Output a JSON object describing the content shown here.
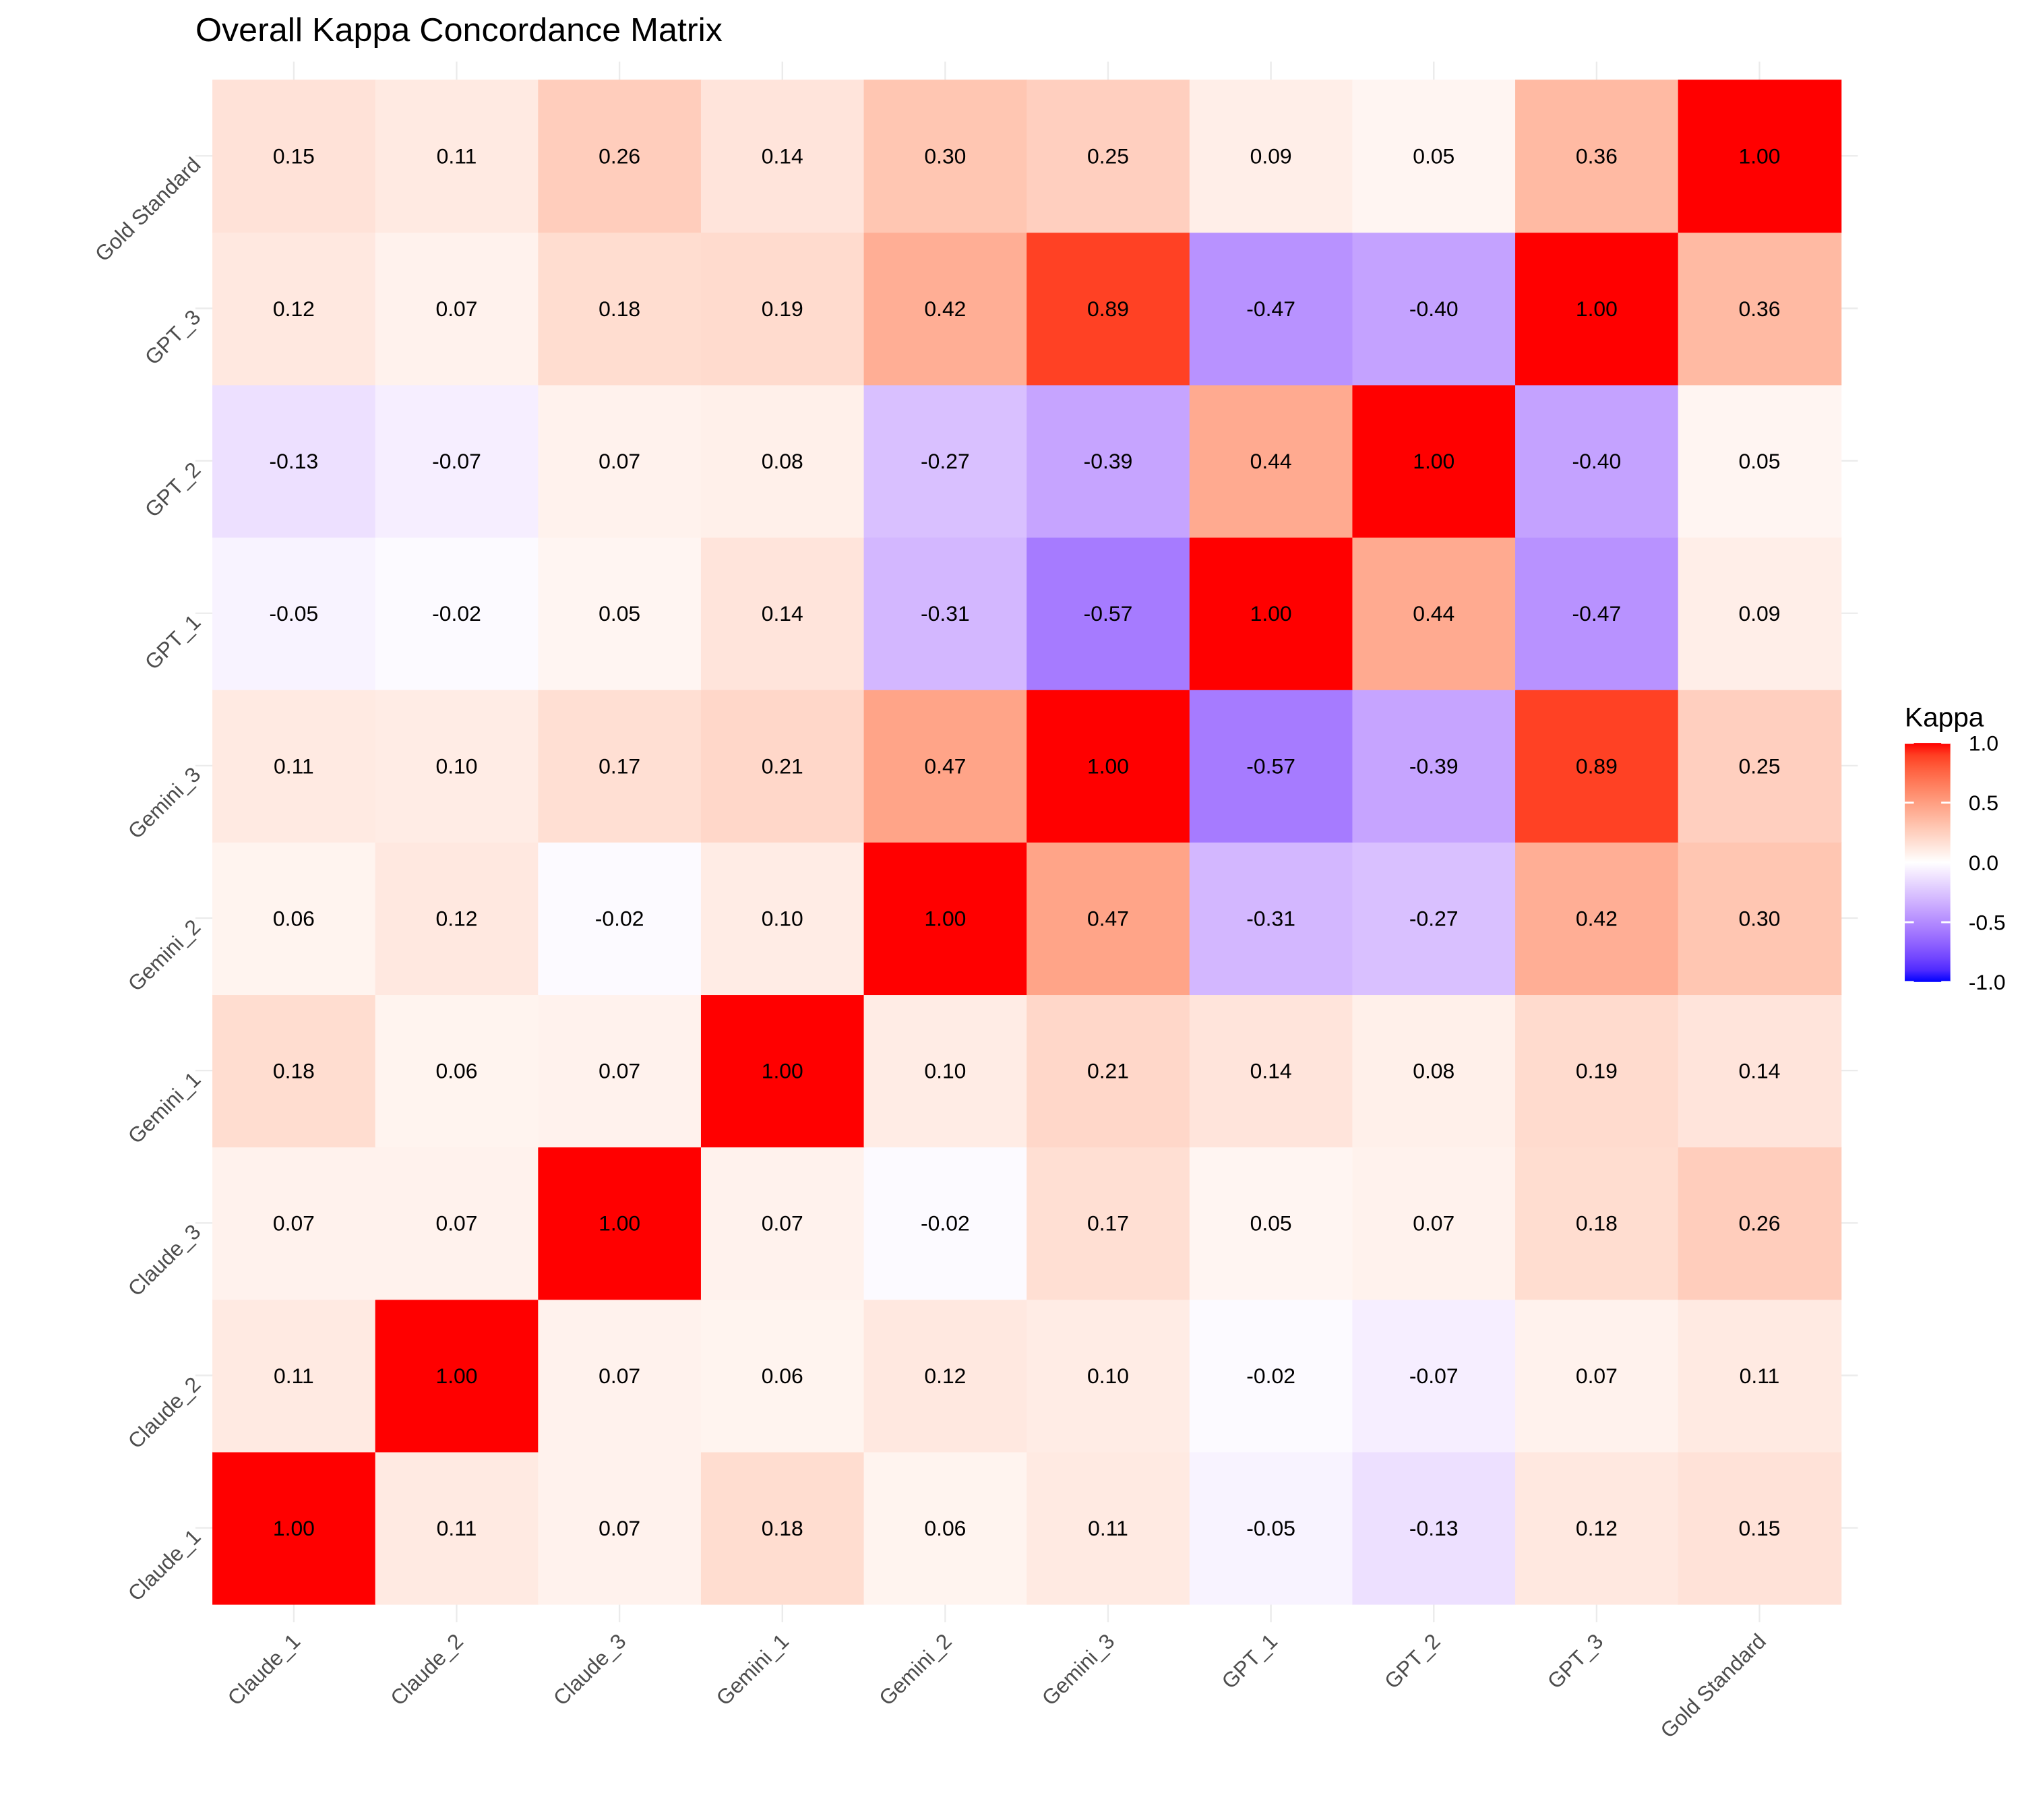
{
  "chart_data": {
    "type": "heatmap",
    "title": "Overall Kappa Concordance Matrix",
    "x_categories": [
      "Claude_1",
      "Claude_2",
      "Claude_3",
      "Gemini_1",
      "Gemini_2",
      "Gemini_3",
      "GPT_1",
      "GPT_2",
      "GPT_3",
      "Gold Standard"
    ],
    "y_categories": [
      "Claude_1",
      "Claude_2",
      "Claude_3",
      "Gemini_1",
      "Gemini_2",
      "Gemini_3",
      "GPT_1",
      "GPT_2",
      "GPT_3",
      "Gold Standard"
    ],
    "values": [
      [
        1,
        0.11,
        0.07,
        0.18,
        0.06,
        0.11,
        -0.05,
        -0.13,
        0.12,
        0.15
      ],
      [
        0.11,
        1,
        0.07,
        0.06,
        0.12,
        0.1,
        -0.02,
        -0.07,
        0.07,
        0.11
      ],
      [
        0.07,
        0.07,
        1,
        0.07,
        -0.02,
        0.17,
        0.05,
        0.07,
        0.18,
        0.26
      ],
      [
        0.18,
        0.06,
        0.07,
        1,
        0.1,
        0.21,
        0.14,
        0.08,
        0.19,
        0.14
      ],
      [
        0.06,
        0.12,
        -0.02,
        0.1,
        1,
        0.47,
        -0.31,
        -0.27,
        0.42,
        0.3
      ],
      [
        0.11,
        0.1,
        0.17,
        0.21,
        0.47,
        1,
        -0.57,
        -0.39,
        0.89,
        0.25
      ],
      [
        -0.05,
        -0.02,
        0.05,
        0.14,
        -0.31,
        -0.57,
        1,
        0.44,
        -0.47,
        0.09
      ],
      [
        -0.13,
        -0.07,
        0.07,
        0.08,
        -0.27,
        -0.39,
        0.44,
        1,
        -0.4,
        0.05
      ],
      [
        0.12,
        0.07,
        0.18,
        0.19,
        0.42,
        0.89,
        -0.47,
        -0.4,
        1,
        0.36
      ],
      [
        0.15,
        0.11,
        0.26,
        0.14,
        0.3,
        0.25,
        0.09,
        0.05,
        0.36,
        1
      ]
    ],
    "value_labels": [
      [
        "1.00",
        "0.11",
        "0.07",
        "0.18",
        "0.06",
        "0.11",
        "-0.05",
        "-0.13",
        "0.12",
        "0.15"
      ],
      [
        "0.11",
        "1.00",
        "0.07",
        "0.06",
        "0.12",
        "0.10",
        "-0.02",
        "-0.07",
        "0.07",
        "0.11"
      ],
      [
        "0.07",
        "0.07",
        "1.00",
        "0.07",
        "-0.02",
        "0.17",
        "0.05",
        "0.07",
        "0.18",
        "0.26"
      ],
      [
        "0.18",
        "0.06",
        "0.07",
        "1.00",
        "0.10",
        "0.21",
        "0.14",
        "0.08",
        "0.19",
        "0.14"
      ],
      [
        "0.06",
        "0.12",
        "-0.02",
        "0.10",
        "1.00",
        "0.47",
        "-0.31",
        "-0.27",
        "0.42",
        "0.30"
      ],
      [
        "0.11",
        "0.10",
        "0.17",
        "0.21",
        "0.47",
        "1.00",
        "-0.57",
        "-0.39",
        "0.89",
        "0.25"
      ],
      [
        "-0.05",
        "-0.02",
        "0.05",
        "0.14",
        "-0.31",
        "-0.57",
        "1.00",
        "0.44",
        "-0.47",
        "0.09"
      ],
      [
        "-0.13",
        "-0.07",
        "0.07",
        "0.08",
        "-0.27",
        "-0.39",
        "0.44",
        "1.00",
        "-0.40",
        "0.05"
      ],
      [
        "0.12",
        "0.07",
        "0.18",
        "0.19",
        "0.42",
        "0.89",
        "-0.47",
        "-0.40",
        "1.00",
        "0.36"
      ],
      [
        "0.15",
        "0.11",
        "0.26",
        "0.14",
        "0.30",
        "0.25",
        "0.09",
        "0.05",
        "0.36",
        "1.00"
      ]
    ],
    "legend_title": "Kappa",
    "zlim": [
      -1,
      1
    ],
    "zticks": [
      {
        "value": 1,
        "label": "1.0"
      },
      0.5,
      {
        "value": 0,
        "label": "0.0"
      },
      -0.5,
      {
        "value": -1,
        "label": "-1.0"
      }
    ],
    "low_color": "#0000ff",
    "mid_color": "#ffffff",
    "high_color": "#ff0000"
  }
}
